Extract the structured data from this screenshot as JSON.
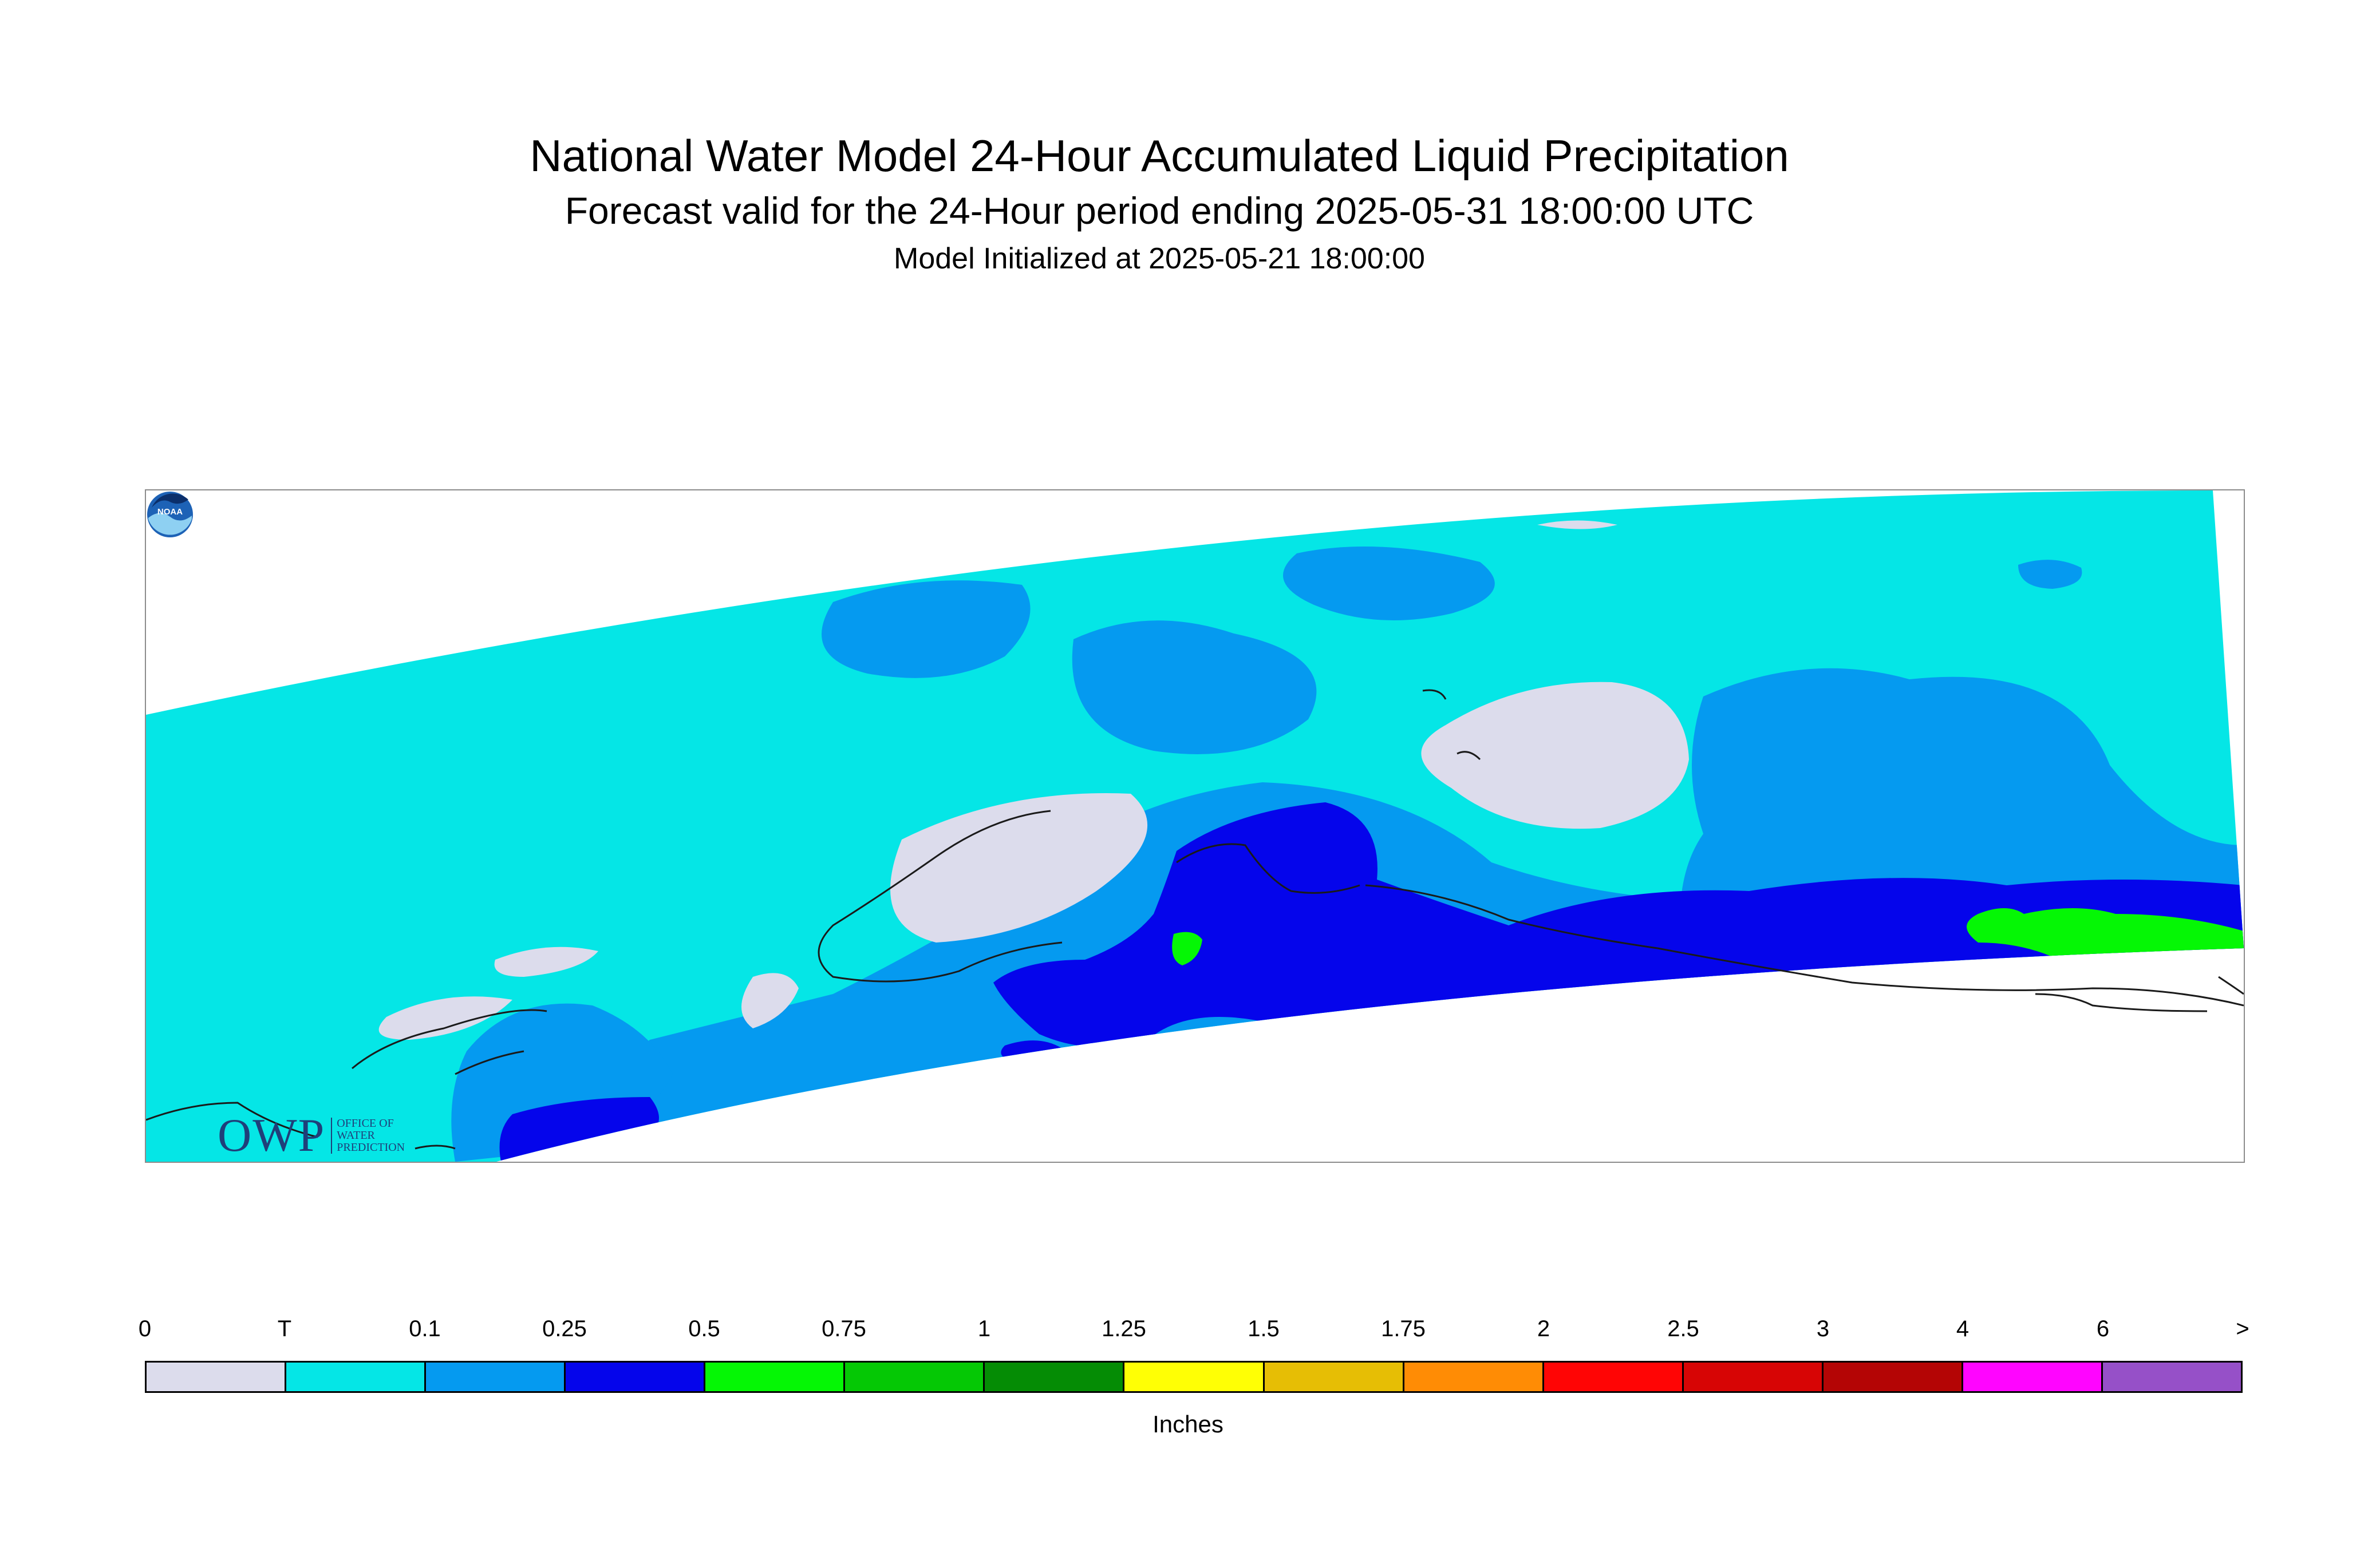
{
  "header": {
    "title": "National Water Model 24-Hour Accumulated Liquid Precipitation",
    "subtitle": "Forecast valid for the 24-Hour period ending 2025-05-31 18:00:00 UTC",
    "init": "Model Initialized at 2025-05-21 18:00:00"
  },
  "map": {
    "colors": {
      "zero": "#dcdcec",
      "trace": "#05e6e6",
      "p01": "#059af0",
      "p025": "#0505eb",
      "p05": "#05f705",
      "coast": "#1a1a1a"
    }
  },
  "logos": {
    "owp_mark": "OWP",
    "owp_text": "OFFICE OF\nWATER\nPREDICTION",
    "noaa_text": "NOAA"
  },
  "legend": {
    "labels": [
      "0",
      "T",
      "0.1",
      "0.25",
      "0.5",
      "0.75",
      "1",
      "1.25",
      "1.5",
      "1.75",
      "2",
      "2.5",
      "3",
      "4",
      "6",
      ">"
    ],
    "colors": [
      "#dcdcec",
      "#05e6e6",
      "#059af0",
      "#0505eb",
      "#05f705",
      "#05c805",
      "#058c05",
      "#ffff05",
      "#e6be05",
      "#ff8c05",
      "#ff0505",
      "#d70505",
      "#b40505",
      "#ff05ff",
      "#9650c8"
    ],
    "units": "Inches"
  }
}
